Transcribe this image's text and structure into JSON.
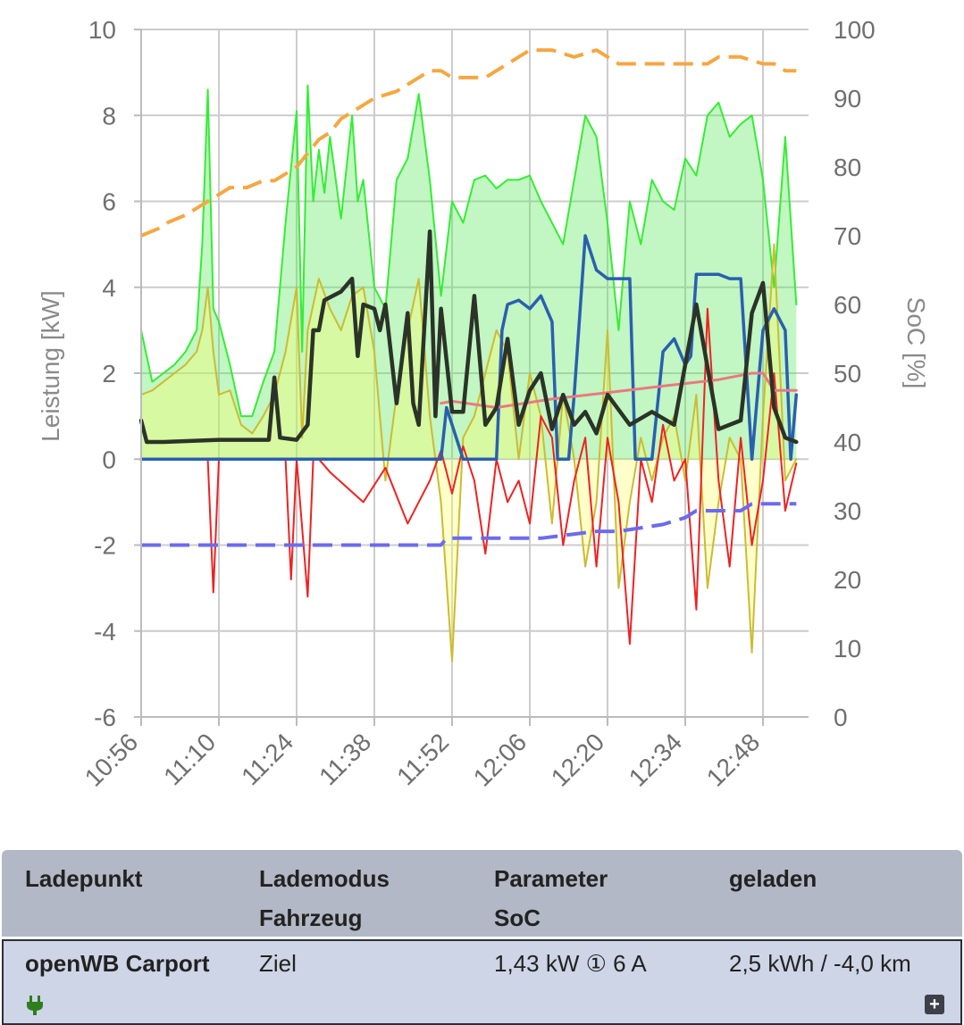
{
  "chart_data": {
    "type": "line",
    "xlabel": "",
    "ylabel_left": "Leistung [kW]",
    "ylabel_right": "SoC [%]",
    "ylim_left": [
      -6,
      10
    ],
    "ylim_right": [
      0,
      100
    ],
    "x_ticks": [
      "10:56",
      "11:10",
      "11:24",
      "11:38",
      "11:52",
      "12:06",
      "12:20",
      "12:34",
      "12:48"
    ],
    "y_ticks_left": [
      "10",
      "8",
      "6",
      "4",
      "2",
      "0",
      "-2",
      "-4",
      "-6"
    ],
    "y_ticks_right": [
      "100",
      "90",
      "80",
      "70",
      "60",
      "50",
      "40",
      "30",
      "20",
      "10",
      "0"
    ],
    "grid": true,
    "series": [
      {
        "color": "#33ee33",
        "fill": "rgba(80,230,80,0.35)",
        "width": 2,
        "axis": "left",
        "x": [
          "10:56",
          "10:58",
          "11:00",
          "11:02",
          "11:04",
          "11:06",
          "11:07",
          "11:08",
          "11:09",
          "11:10",
          "11:12",
          "11:14",
          "11:16",
          "11:18",
          "11:20",
          "11:22",
          "11:24",
          "11:25",
          "11:26",
          "11:27",
          "11:28",
          "11:29",
          "11:30",
          "11:32",
          "11:34",
          "11:35",
          "11:36",
          "11:38",
          "11:40",
          "11:42",
          "11:44",
          "11:46",
          "11:48",
          "11:50",
          "11:52",
          "11:54",
          "11:56",
          "11:58",
          "12:00",
          "12:02",
          "12:04",
          "12:06",
          "12:08",
          "12:10",
          "12:12",
          "12:14",
          "12:16",
          "12:18",
          "12:20",
          "12:22",
          "12:24",
          "12:26",
          "12:28",
          "12:30",
          "12:32",
          "12:34",
          "12:36",
          "12:38",
          "12:40",
          "12:42",
          "12:44",
          "12:46",
          "12:48",
          "12:50",
          "12:52",
          "12:54"
        ],
        "values": [
          3.0,
          1.8,
          2.0,
          2.2,
          2.5,
          3.0,
          5.0,
          8.6,
          3.5,
          3.2,
          2.2,
          1.0,
          1.0,
          1.8,
          2.5,
          5.5,
          8.1,
          2.5,
          8.7,
          6.0,
          7.2,
          6.2,
          7.5,
          5.6,
          8.0,
          6.0,
          6.5,
          4.0,
          3.5,
          6.5,
          7.0,
          8.5,
          6.5,
          3.8,
          6.0,
          5.5,
          6.5,
          6.6,
          6.3,
          6.5,
          6.5,
          6.6,
          6.0,
          5.5,
          5.0,
          6.5,
          8.0,
          7.5,
          5.5,
          3.0,
          6.0,
          5.0,
          6.5,
          6.0,
          5.8,
          7.0,
          6.6,
          8.0,
          8.3,
          7.5,
          7.8,
          8.0,
          6.5,
          4.0,
          7.5,
          3.6
        ]
      },
      {
        "color": "#ccbb33",
        "fill": "rgba(255,255,100,0.35)",
        "width": 2,
        "axis": "left",
        "x": [
          "10:56",
          "10:58",
          "11:00",
          "11:02",
          "11:04",
          "11:06",
          "11:07",
          "11:08",
          "11:09",
          "11:10",
          "11:12",
          "11:14",
          "11:16",
          "11:18",
          "11:20",
          "11:22",
          "11:24",
          "11:25",
          "11:26",
          "11:28",
          "11:30",
          "11:32",
          "11:34",
          "11:36",
          "11:38",
          "11:40",
          "11:42",
          "11:44",
          "11:46",
          "11:48",
          "11:50",
          "11:52",
          "11:54",
          "11:56",
          "11:58",
          "12:00",
          "12:02",
          "12:04",
          "12:06",
          "12:08",
          "12:10",
          "12:12",
          "12:14",
          "12:16",
          "12:18",
          "12:20",
          "12:22",
          "12:24",
          "12:26",
          "12:28",
          "12:30",
          "12:32",
          "12:34",
          "12:36",
          "12:38",
          "12:40",
          "12:42",
          "12:44",
          "12:46",
          "12:48",
          "12:50",
          "12:52",
          "12:54"
        ],
        "values": [
          1.5,
          1.6,
          1.8,
          2.0,
          2.2,
          2.5,
          3.0,
          4.0,
          2.5,
          1.5,
          1.6,
          0.8,
          0.6,
          1.0,
          1.5,
          2.5,
          4.0,
          0.5,
          3.0,
          4.2,
          3.5,
          3.0,
          3.8,
          4.0,
          2.5,
          -0.5,
          1.5,
          3.0,
          4.2,
          1.0,
          -1.0,
          -4.7,
          0.5,
          1.0,
          2.0,
          3.0,
          2.5,
          0.0,
          2.0,
          1.0,
          -1.5,
          1.5,
          0.0,
          -2.5,
          -1.0,
          3.0,
          -3.0,
          -1.0,
          0.5,
          -0.5,
          0.5,
          1.0,
          -0.5,
          1.5,
          -3.0,
          -1.0,
          0.5,
          0.0,
          -4.5,
          1.0,
          5.0,
          -0.5,
          0.0
        ]
      },
      {
        "color": "#ee2222",
        "width": 2,
        "axis": "left",
        "x": [
          "10:56",
          "11:08",
          "11:09",
          "11:10",
          "11:22",
          "11:23",
          "11:24",
          "11:26",
          "11:27",
          "11:28",
          "11:30",
          "11:36",
          "11:40",
          "11:44",
          "11:48",
          "11:50",
          "11:52",
          "11:54",
          "11:56",
          "11:58",
          "12:00",
          "12:02",
          "12:04",
          "12:06",
          "12:08",
          "12:10",
          "12:12",
          "12:14",
          "12:16",
          "12:18",
          "12:20",
          "12:22",
          "12:24",
          "12:26",
          "12:28",
          "12:30",
          "12:32",
          "12:34",
          "12:36",
          "12:38",
          "12:40",
          "12:42",
          "12:44",
          "12:46",
          "12:48",
          "12:50",
          "12:52",
          "12:54"
        ],
        "values": [
          0.0,
          0.0,
          -3.1,
          0.0,
          0.0,
          -2.8,
          0.0,
          -3.2,
          0.0,
          0.0,
          -0.3,
          -1.0,
          -0.2,
          -1.5,
          -0.5,
          0.2,
          -0.8,
          0.3,
          -0.5,
          -2.2,
          0.0,
          -1.0,
          -0.5,
          -1.5,
          1.0,
          0.5,
          -2.0,
          -0.5,
          0.5,
          -2.5,
          0.5,
          -1.0,
          -4.3,
          0.0,
          -1.0,
          0.8,
          -0.5,
          0.0,
          -3.5,
          3.5,
          -0.5,
          -2.5,
          0.5,
          -2.0,
          -0.5,
          2.0,
          -1.2,
          -0.1
        ]
      },
      {
        "color": "#2a5fb0",
        "width": 3.5,
        "axis": "left",
        "x": [
          "10:56",
          "11:50",
          "11:51",
          "11:54",
          "12:00",
          "12:01",
          "12:02",
          "12:04",
          "12:06",
          "12:08",
          "12:10",
          "12:11",
          "12:13",
          "12:14",
          "12:16",
          "12:18",
          "12:20",
          "12:24",
          "12:25",
          "12:28",
          "12:30",
          "12:32",
          "12:34",
          "12:35",
          "12:36",
          "12:38",
          "12:40",
          "12:42",
          "12:44",
          "12:46",
          "12:48",
          "12:50",
          "12:52",
          "12:53",
          "12:54"
        ],
        "values": [
          0.0,
          0.0,
          1.2,
          0.0,
          0.0,
          3.0,
          3.6,
          3.7,
          3.5,
          3.8,
          3.2,
          0.0,
          0.0,
          1.5,
          5.2,
          4.4,
          4.2,
          4.2,
          0.0,
          0.0,
          2.5,
          2.8,
          2.2,
          2.4,
          4.3,
          4.3,
          4.3,
          4.2,
          4.2,
          0.0,
          3.0,
          3.5,
          3.0,
          0.0,
          1.5
        ]
      },
      {
        "color": "#e87a82",
        "width": 3,
        "axis": "left",
        "x": [
          "11:50",
          "11:52",
          "12:00",
          "12:10",
          "12:20",
          "12:30",
          "12:40",
          "12:46",
          "12:48",
          "12:50",
          "12:54"
        ],
        "values": [
          1.3,
          1.35,
          1.2,
          1.4,
          1.55,
          1.7,
          1.85,
          2.0,
          2.0,
          1.6,
          1.6
        ]
      },
      {
        "color": "#2b3328",
        "width": 4.5,
        "axis": "left",
        "x": [
          "10:56",
          "10:57",
          "11:00",
          "11:10",
          "11:19",
          "11:20",
          "11:21",
          "11:24",
          "11:26",
          "11:27",
          "11:28",
          "11:29",
          "11:32",
          "11:34",
          "11:35",
          "11:36",
          "11:38",
          "11:39",
          "11:40",
          "11:42",
          "11:44",
          "11:45",
          "11:46",
          "11:48",
          "11:49",
          "11:50",
          "11:52",
          "11:54",
          "11:56",
          "11:58",
          "12:00",
          "12:02",
          "12:04",
          "12:06",
          "12:08",
          "12:10",
          "12:12",
          "12:14",
          "12:16",
          "12:18",
          "12:20",
          "12:24",
          "12:28",
          "12:32",
          "12:36",
          "12:40",
          "12:44",
          "12:46",
          "12:48",
          "12:50",
          "12:52",
          "12:54"
        ],
        "values": [
          0.9,
          0.4,
          0.4,
          0.45,
          0.45,
          1.9,
          0.5,
          0.45,
          0.8,
          3.0,
          3.0,
          3.7,
          3.9,
          4.2,
          2.4,
          3.6,
          3.5,
          3.0,
          3.6,
          1.3,
          3.4,
          1.3,
          0.8,
          5.3,
          1.0,
          3.5,
          1.1,
          1.1,
          3.8,
          0.8,
          1.2,
          2.8,
          0.8,
          1.6,
          2.0,
          0.7,
          1.5,
          0.8,
          1.1,
          0.6,
          1.5,
          0.8,
          1.1,
          0.8,
          3.6,
          0.7,
          0.9,
          3.4,
          4.1,
          1.2,
          0.5,
          0.4
        ]
      },
      {
        "color": "#f5a742",
        "width": 4,
        "dash": "22 10",
        "axis": "right",
        "x": [
          "10:56",
          "10:59",
          "11:01",
          "11:04",
          "11:06",
          "11:08",
          "11:10",
          "11:12",
          "11:15",
          "11:18",
          "11:20",
          "11:22",
          "11:24",
          "11:26",
          "11:28",
          "11:30",
          "11:32",
          "11:34",
          "11:36",
          "11:38",
          "11:42",
          "11:44",
          "11:46",
          "11:48",
          "11:50",
          "11:52",
          "11:54",
          "11:58",
          "12:00",
          "12:02",
          "12:04",
          "12:06",
          "12:10",
          "12:14",
          "12:18",
          "12:22",
          "12:26",
          "12:30",
          "12:34",
          "12:38",
          "12:40",
          "12:44",
          "12:48",
          "12:50",
          "12:52",
          "12:54"
        ],
        "values": [
          70,
          71,
          72,
          73,
          74,
          75,
          76,
          77,
          77,
          78,
          78,
          79,
          80,
          82,
          84,
          85,
          87,
          88,
          89,
          90,
          91,
          92,
          93,
          94,
          94,
          93,
          93,
          93,
          94,
          95,
          96,
          97,
          97,
          96,
          97,
          95,
          95,
          95,
          95,
          95,
          96,
          96,
          95,
          95,
          94,
          94
        ]
      },
      {
        "color": "#6b6bee",
        "width": 4,
        "dash": "22 10",
        "axis": "right",
        "x": [
          "10:56",
          "11:40",
          "11:50",
          "11:51",
          "11:56",
          "12:04",
          "12:08",
          "12:18",
          "12:22",
          "12:30",
          "12:34",
          "12:36",
          "12:44",
          "12:46",
          "12:54"
        ],
        "values": [
          25,
          25,
          25,
          26,
          26,
          26,
          26,
          27,
          27,
          28,
          29,
          30,
          30,
          31,
          31
        ]
      }
    ]
  },
  "table": {
    "headers": {
      "col1_line1": "Ladepunkt",
      "col2_line1": "Lademodus",
      "col2_line2": "Fahrzeug",
      "col3_line1": "Parameter",
      "col3_line2": "SoC",
      "col4_line1": "geladen"
    },
    "row": {
      "name": "openWB Carport",
      "mode": "Ziel",
      "parameter": "1,43 kW ① 6 A",
      "charged": "2,5 kWh / -4,0 km",
      "plug_icon_color": "#2e7d1e",
      "expand_symbol": "+"
    }
  }
}
